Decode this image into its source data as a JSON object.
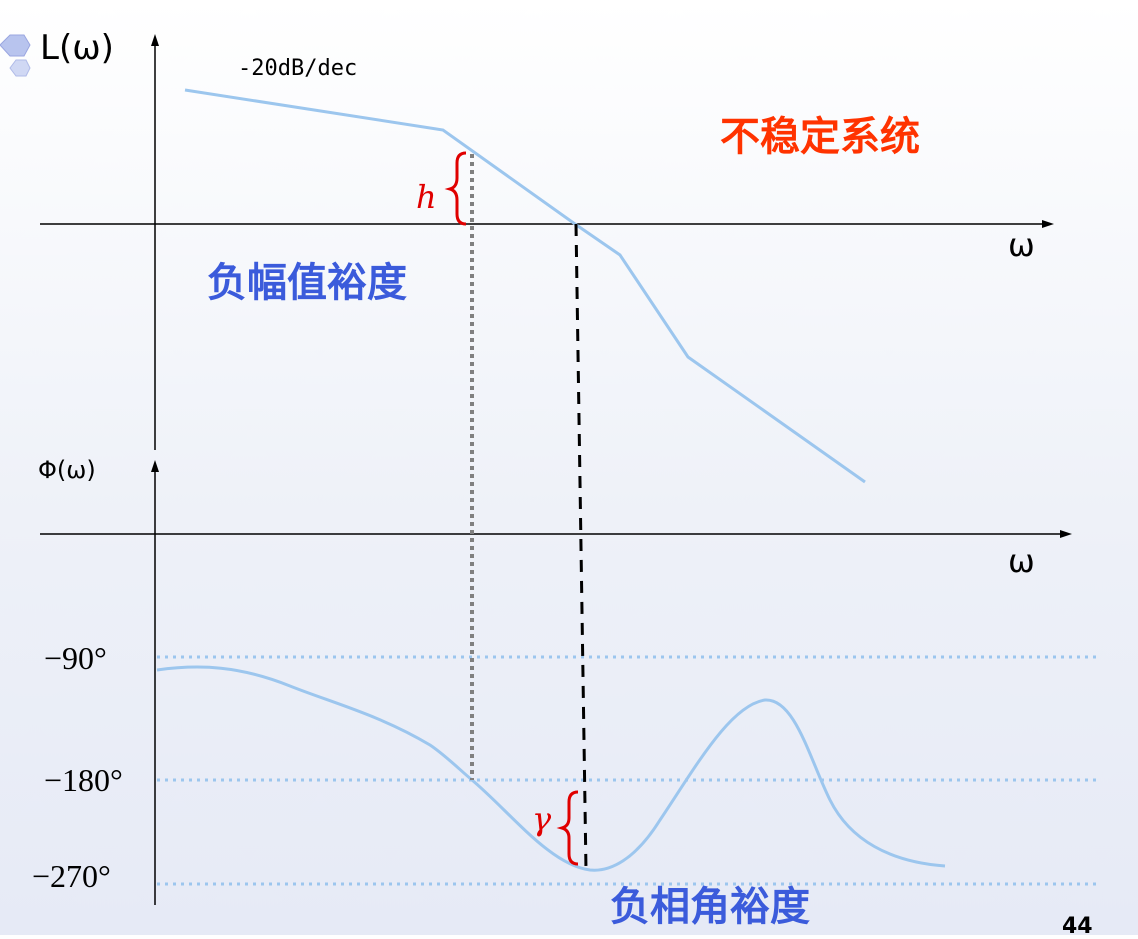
{
  "magnitude_plot": {
    "y_label": "L(ω)",
    "x_label": "ω",
    "slope_annotation": "-20dB/dec",
    "margin_symbol": "h"
  },
  "phase_plot": {
    "y_label": "Φ(ω)",
    "x_label": "ω",
    "margin_symbol": "γ",
    "reference_levels": [
      "−90°",
      "−180°",
      "−270°"
    ]
  },
  "annotations": {
    "system_status": "不稳定系统",
    "negative_gain_margin": "负幅值裕度",
    "negative_phase_margin": "负相角裕度"
  },
  "page_number": "44",
  "colors": {
    "curve": "#9cc6ee",
    "reference_dotted": "#9cc6ee",
    "dashed_crossover": "#000000",
    "dotted_phase_crossover": "#808080",
    "status_text": "#ff3300",
    "margin_text": "#3b5bdb",
    "brace": "#e00000"
  }
}
